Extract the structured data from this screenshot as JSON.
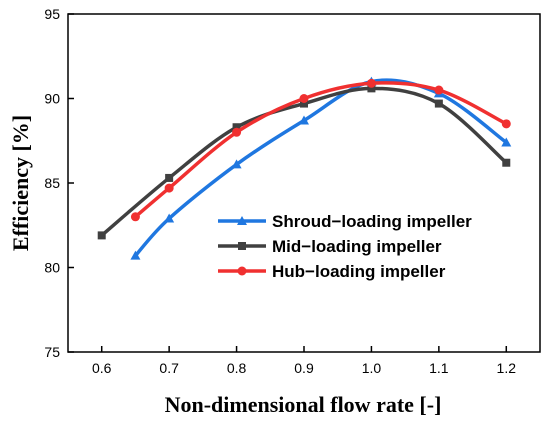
{
  "chart_data": {
    "type": "line",
    "xlabel": "Non-dimensional flow rate [-]",
    "ylabel": "Efficiency [%]",
    "xlim": [
      0.55,
      1.25
    ],
    "ylim": [
      75,
      95
    ],
    "xticks": [
      "0.6",
      "0.7",
      "0.8",
      "0.9",
      "1.0",
      "1.1",
      "1.2"
    ],
    "yticks": [
      "75",
      "80",
      "85",
      "90",
      "95"
    ],
    "grid": false,
    "legend_position": "center-right",
    "series": [
      {
        "name": "Shroud−loading impeller",
        "color": "#1f77e0",
        "marker": "triangle",
        "x": [
          0.65,
          0.7,
          0.8,
          0.9,
          1.0,
          1.1,
          1.2
        ],
        "y": [
          80.7,
          82.9,
          86.1,
          88.7,
          91.0,
          90.3,
          87.4
        ]
      },
      {
        "name": "Mid−loading impeller",
        "color": "#404040",
        "marker": "square",
        "x": [
          0.6,
          0.7,
          0.8,
          0.9,
          1.0,
          1.1,
          1.2
        ],
        "y": [
          81.9,
          85.3,
          88.3,
          89.7,
          90.6,
          89.7,
          86.2
        ]
      },
      {
        "name": "Hub−loading impeller",
        "color": "#f03030",
        "marker": "circle",
        "x": [
          0.65,
          0.7,
          0.8,
          0.9,
          1.0,
          1.1,
          1.2
        ],
        "y": [
          83.0,
          84.7,
          88.0,
          90.0,
          90.9,
          90.5,
          88.5
        ]
      }
    ]
  }
}
